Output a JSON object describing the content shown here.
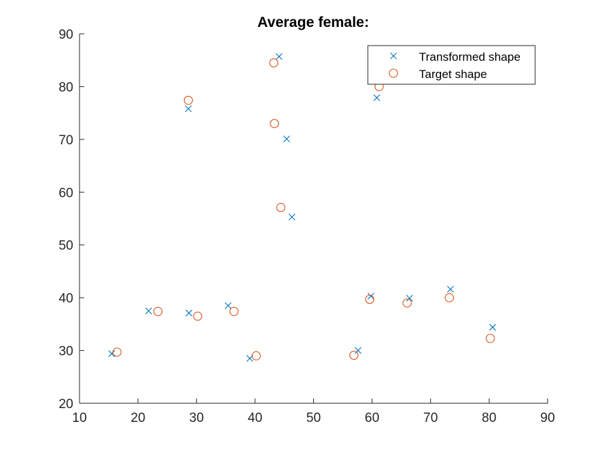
{
  "chart_data": {
    "type": "scatter",
    "title": "Average female:",
    "xlabel": "",
    "ylabel": "",
    "xlim": [
      10,
      90
    ],
    "ylim": [
      20,
      90
    ],
    "xticks": [
      10,
      20,
      30,
      40,
      50,
      60,
      70,
      80,
      90
    ],
    "yticks": [
      20,
      30,
      40,
      50,
      60,
      70,
      80,
      90
    ],
    "grid": false,
    "legend_position": "top-right",
    "series": [
      {
        "name": "Transformed shape",
        "marker": "x",
        "color": "#0072BD",
        "points": [
          [
            15.5,
            29.4
          ],
          [
            21.8,
            37.5
          ],
          [
            28.7,
            37.1
          ],
          [
            35.4,
            38.5
          ],
          [
            39.1,
            28.5
          ],
          [
            28.6,
            75.8
          ],
          [
            44.1,
            85.7
          ],
          [
            45.4,
            70.1
          ],
          [
            46.3,
            55.3
          ],
          [
            57.6,
            30.0
          ],
          [
            59.8,
            40.3
          ],
          [
            66.4,
            39.9
          ],
          [
            73.4,
            41.6
          ],
          [
            60.8,
            77.9
          ],
          [
            80.6,
            34.4
          ]
        ]
      },
      {
        "name": "Target shape",
        "marker": "o",
        "color": "#D95319",
        "points": [
          [
            16.4,
            29.7
          ],
          [
            23.4,
            37.4
          ],
          [
            30.2,
            36.5
          ],
          [
            36.4,
            37.4
          ],
          [
            40.2,
            29.0
          ],
          [
            28.6,
            77.4
          ],
          [
            43.2,
            84.5
          ],
          [
            43.3,
            73.0
          ],
          [
            44.4,
            57.1
          ],
          [
            56.9,
            29.1
          ],
          [
            59.6,
            39.7
          ],
          [
            66.0,
            39.0
          ],
          [
            73.2,
            40.0
          ],
          [
            61.2,
            80.0
          ],
          [
            80.2,
            32.3
          ]
        ]
      }
    ]
  }
}
